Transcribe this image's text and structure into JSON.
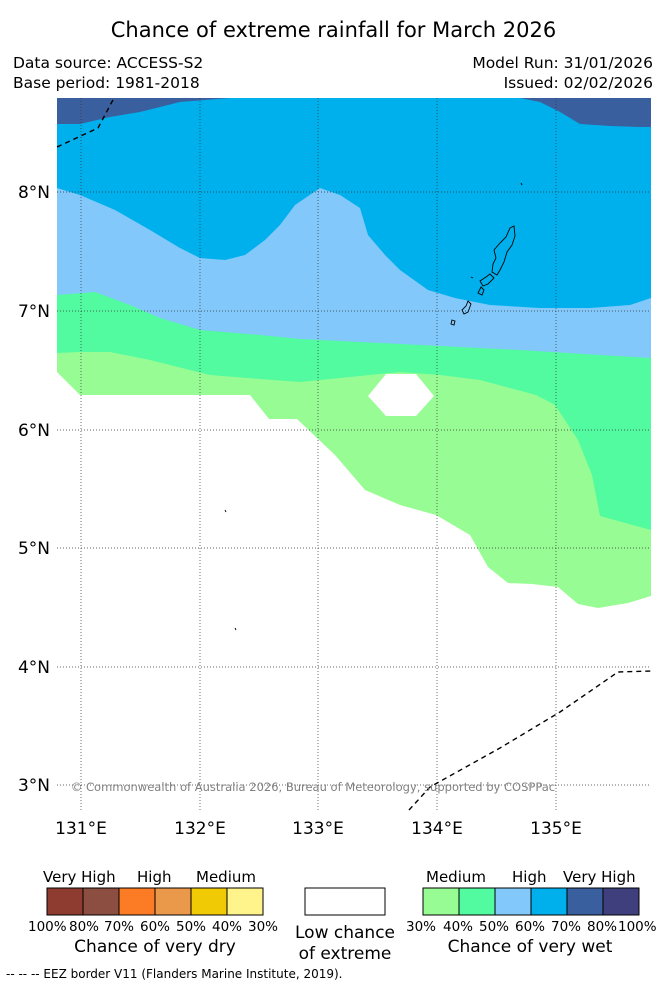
{
  "title": "Chance of extreme rainfall for March 2026",
  "header": {
    "data_source": "Data source: ACCESS-S2",
    "base_period": "Base period: 1981-2018",
    "model_run": "Model Run: 31/01/2026",
    "issued": "Issued: 02/02/2026"
  },
  "map": {
    "lat_labels": [
      "8°N",
      "7°N",
      "6°N",
      "5°N",
      "4°N",
      "3°N"
    ],
    "lon_labels": [
      "131°E",
      "132°E",
      "133°E",
      "134°E",
      "135°E"
    ],
    "copyright": "© Commonwealth of Australia 2026, Bureau of Meteorology, supported by COSPPac",
    "colors": {
      "very_high_wet_80": "#3a5f9f",
      "high_wet_70": "#00b0ec",
      "medium_wet_60": "#82c8fa",
      "medium_wet_50": "#52fb9f",
      "medium_wet_40": "#98fc94",
      "low": "#ffffff"
    }
  },
  "legend": {
    "dry": {
      "labels": [
        "Very High",
        "High",
        "Medium"
      ],
      "ticks": [
        "100%",
        "80%",
        "70%",
        "60%",
        "50%",
        "40%",
        "30%"
      ],
      "colors": [
        "#8e3b30",
        "#8b4e40",
        "#fb7c24",
        "#ea994a",
        "#efca05",
        "#fef48b"
      ],
      "title": "Chance of very dry"
    },
    "low": {
      "line1": "Low chance",
      "line2": "of extreme"
    },
    "wet": {
      "labels": [
        "Medium",
        "High",
        "Very High"
      ],
      "ticks": [
        "30%",
        "40%",
        "50%",
        "60%",
        "70%",
        "80%",
        "100%"
      ],
      "colors": [
        "#98fc94",
        "#52fb9f",
        "#82c8fa",
        "#00b0ec",
        "#3a5f9f",
        "#3f3f7e"
      ],
      "title": "Chance of very wet"
    }
  },
  "footnote": "--  --  -- EEZ border V11 (Flanders Marine Institute, 2019)."
}
